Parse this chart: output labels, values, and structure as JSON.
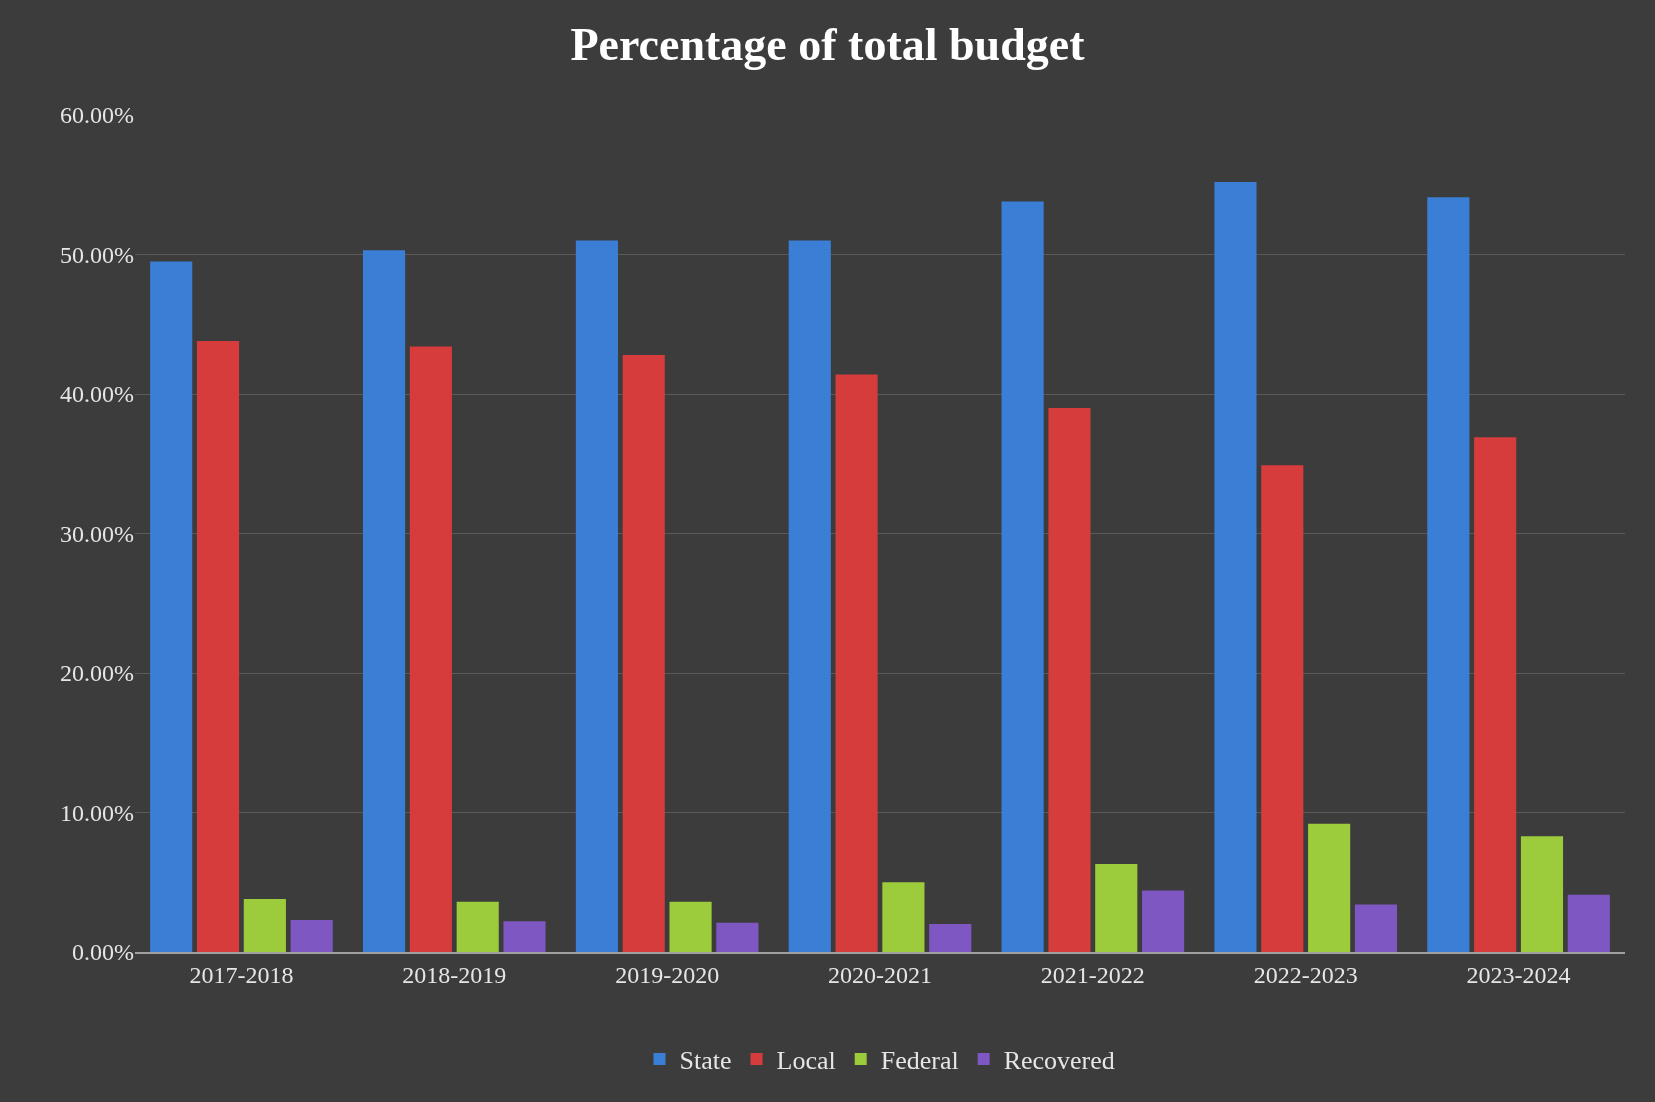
{
  "chart_data": {
    "type": "bar",
    "title": "Percentage of total budget",
    "categories": [
      "2017-2018",
      "2018-2019",
      "2019-2020",
      "2020-2021",
      "2021-2022",
      "2022-2023",
      "2023-2024"
    ],
    "series": [
      {
        "name": "State",
        "color": "#3a7fd5",
        "values": [
          49.5,
          50.3,
          51.0,
          51.0,
          53.8,
          55.2,
          54.1
        ]
      },
      {
        "name": "Local",
        "color": "#d63c3c",
        "values": [
          43.8,
          43.4,
          42.8,
          41.4,
          39.0,
          34.9,
          36.9
        ]
      },
      {
        "name": "Federal",
        "color": "#9ccc3c",
        "values": [
          3.8,
          3.6,
          3.6,
          5.0,
          6.3,
          9.2,
          8.3
        ]
      },
      {
        "name": "Recovered",
        "color": "#7e57c2",
        "values": [
          2.3,
          2.2,
          2.1,
          2.0,
          4.4,
          3.4,
          4.1
        ]
      }
    ],
    "ylim": [
      0,
      60
    ],
    "yticks": [
      {
        "value": 0,
        "label": "0.00%"
      },
      {
        "value": 10,
        "label": "10.00%"
      },
      {
        "value": 20,
        "label": "20.00%"
      },
      {
        "value": 30,
        "label": "30.00%"
      },
      {
        "value": 40,
        "label": "40.00%"
      },
      {
        "value": 50,
        "label": "50.00%"
      },
      {
        "value": 60,
        "label": "60.00%"
      }
    ],
    "grid": "y",
    "legend": "bottom"
  }
}
